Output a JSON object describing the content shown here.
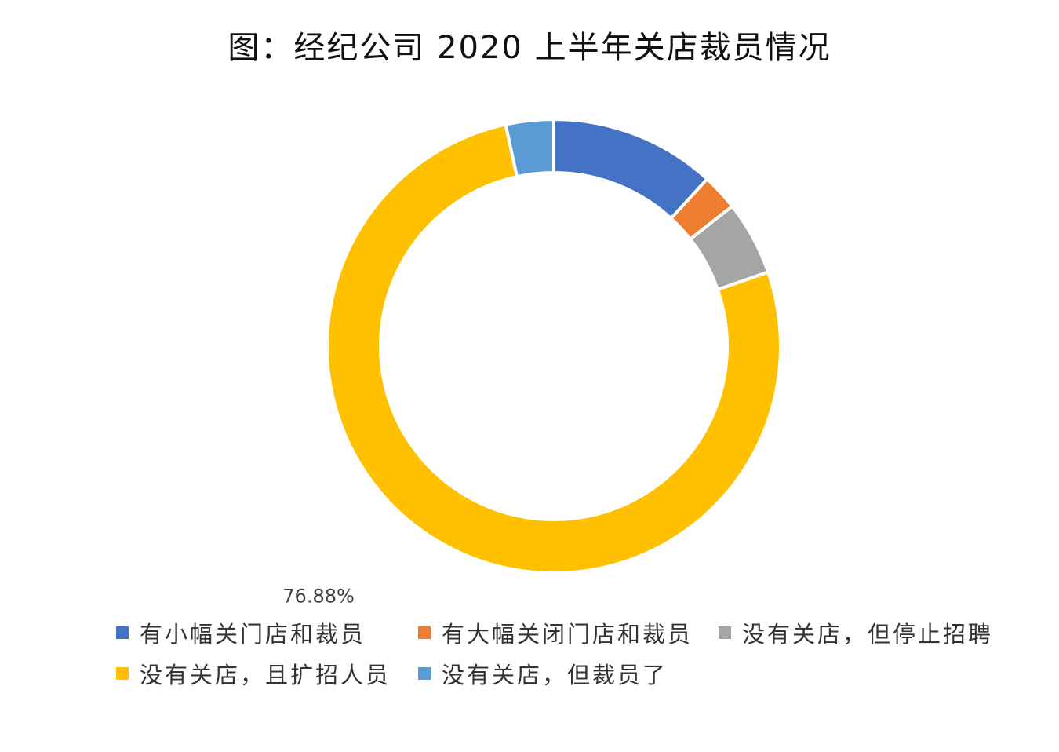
{
  "chart_data": {
    "type": "pie",
    "style": "donut",
    "title": "图：经纪公司 2020 上半年关店裁员情况",
    "legend_position": "bottom",
    "categories": [
      "有小幅关门店和裁员",
      "有大幅关闭门店和裁员",
      "没有关店，但停止招聘",
      "没有关店，且扩招人员",
      "没有关店，但裁员了"
    ],
    "values": [
      11.82,
      2.6,
      5.29,
      76.88,
      3.41
    ],
    "colors": [
      "#4472C4",
      "#ED7D31",
      "#A5A5A5",
      "#FFC000",
      "#5B9BD5"
    ],
    "data_labels": [
      {
        "series_index": 3,
        "text": "76.88%"
      }
    ]
  }
}
